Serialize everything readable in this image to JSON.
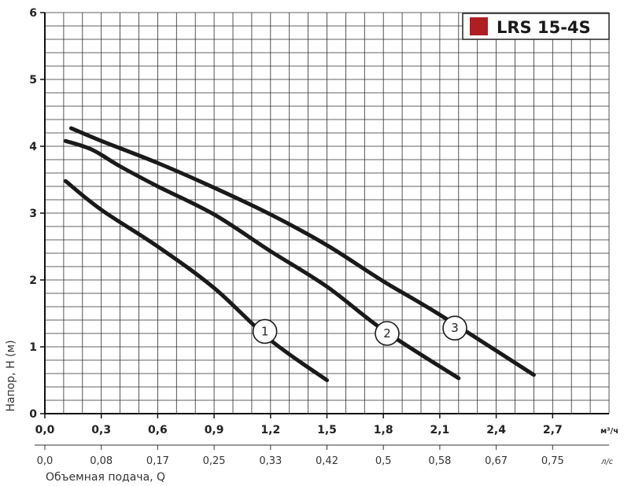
{
  "chart_data": {
    "type": "line",
    "title": "LRS 15-4S",
    "legend": {
      "label": "LRS 15-4S",
      "color": "#b01e23",
      "placement": "top-right"
    },
    "ylabel": "Напор, H (м)",
    "xlabel": "Объемная подача, Q",
    "x_unit": "м³/ч",
    "x2_unit": "л/с",
    "xlim": [
      0,
      3.0
    ],
    "ylim": [
      0,
      6
    ],
    "grid": true,
    "y_ticks": [
      "0",
      "1",
      "2",
      "3",
      "4",
      "5",
      "6"
    ],
    "x_ticks": [
      "0,0",
      "0,3",
      "0,6",
      "0,9",
      "1,2",
      "1,5",
      "1,8",
      "2,1",
      "2,4",
      "2,7"
    ],
    "x2_ticks": [
      "0,0",
      "0,08",
      "0,17",
      "0,25",
      "0,33",
      "0,42",
      "0,5",
      "0,58",
      "0,67",
      "0,75"
    ],
    "series": [
      {
        "name": "1",
        "x": [
          0.11,
          0.3,
          0.6,
          0.9,
          1.2,
          1.5
        ],
        "y": [
          3.48,
          3.05,
          2.5,
          1.88,
          1.1,
          0.5
        ]
      },
      {
        "name": "2",
        "x": [
          0.11,
          0.25,
          0.4,
          0.6,
          0.9,
          1.2,
          1.5,
          1.8,
          2.2
        ],
        "y": [
          4.08,
          3.95,
          3.7,
          3.4,
          2.98,
          2.43,
          1.9,
          1.25,
          0.53
        ]
      },
      {
        "name": "3",
        "x": [
          0.14,
          0.3,
          0.6,
          0.9,
          1.2,
          1.5,
          1.8,
          2.1,
          2.6
        ],
        "y": [
          4.27,
          4.08,
          3.75,
          3.38,
          2.98,
          2.52,
          1.98,
          1.48,
          0.58
        ]
      }
    ],
    "curve_labels": [
      {
        "text": "1",
        "x": 1.17,
        "y": 1.23
      },
      {
        "text": "2",
        "x": 1.82,
        "y": 1.2
      },
      {
        "text": "3",
        "x": 2.18,
        "y": 1.28
      }
    ]
  }
}
